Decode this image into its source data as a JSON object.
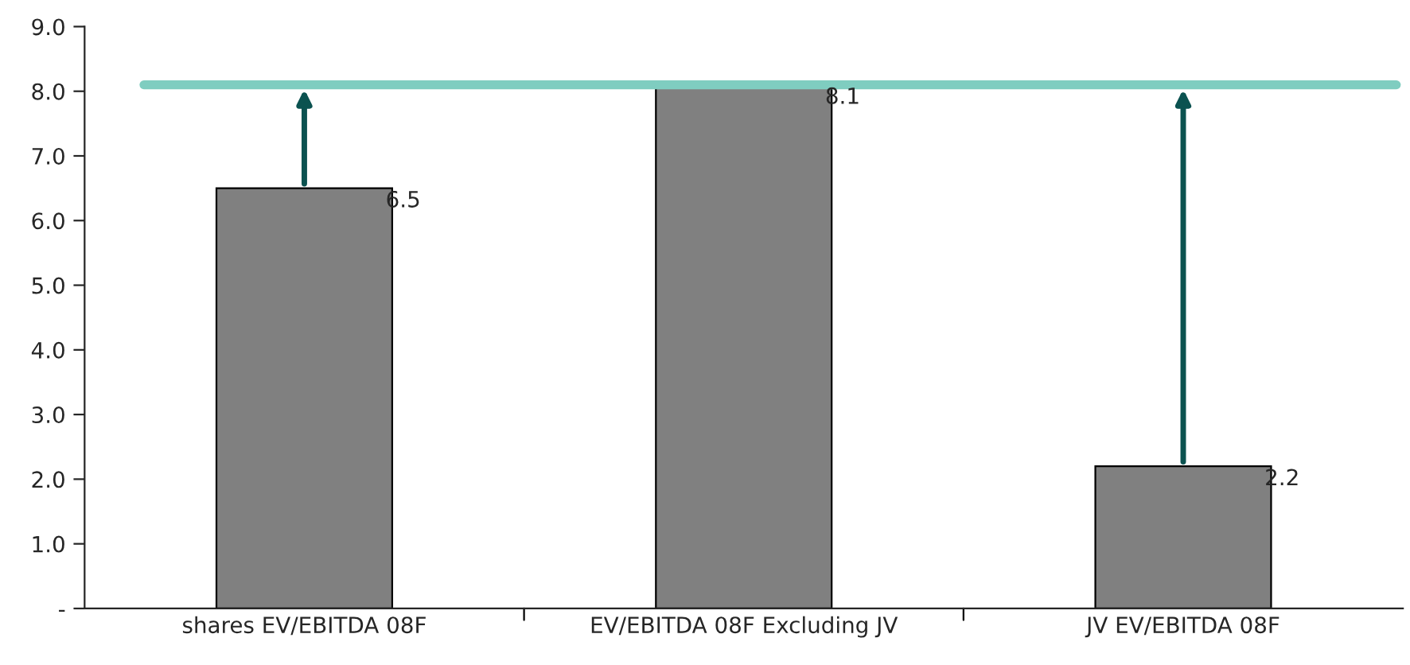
{
  "chart_data": {
    "type": "bar",
    "categories": [
      "shares EV/EBITDA 08F",
      "EV/EBITDA 08F Excluding JV",
      "JV EV/EBITDA 08F"
    ],
    "values": [
      6.5,
      8.1,
      2.2
    ],
    "color": "#808080",
    "data_labels": true,
    "ylim": [
      0,
      9
    ],
    "yticks": [
      {
        "value": 0,
        "label": "-"
      },
      {
        "value": 1,
        "label": "1.0"
      },
      {
        "value": 2,
        "label": "2.0"
      },
      {
        "value": 3,
        "label": "3.0"
      },
      {
        "value": 4,
        "label": "4.0"
      },
      {
        "value": 5,
        "label": "5.0"
      },
      {
        "value": 6,
        "label": "6.0"
      },
      {
        "value": 7,
        "label": "7.0"
      },
      {
        "value": 8,
        "label": "8.0"
      },
      {
        "value": 9,
        "label": "9.0"
      }
    ],
    "grid": false,
    "legend": false,
    "ref_lines": [
      {
        "axis": "y",
        "value": 8.1,
        "color": "#7fcdc0"
      }
    ]
  }
}
